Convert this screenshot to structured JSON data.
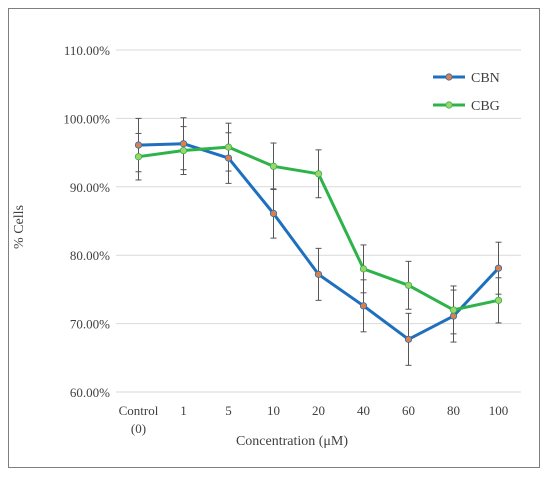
{
  "chart_data": {
    "type": "line",
    "title": "",
    "xlabel": "Concentration (μM)",
    "ylabel": "% Cells",
    "categories": [
      [
        "Control",
        "(0)"
      ],
      [
        "1"
      ],
      [
        "5"
      ],
      [
        "10"
      ],
      [
        "20"
      ],
      [
        "40"
      ],
      [
        "60"
      ],
      [
        "80"
      ],
      [
        "100"
      ]
    ],
    "ylim": [
      60,
      110
    ],
    "ytick_step": 10,
    "ytick_labels": [
      "60.00%",
      "70.00%",
      "80.00%",
      "90.00%",
      "100.00%",
      "110.00%"
    ],
    "grid": "horizontal",
    "legend": "top-right",
    "series": [
      {
        "name": "CBN",
        "color": "#1f6fbf",
        "marker_color": "#e07f45",
        "values": [
          96.1,
          96.3,
          94.2,
          86.1,
          77.2,
          72.6,
          67.7,
          71.1,
          78.1
        ],
        "errors": [
          3.9,
          3.8,
          3.7,
          3.6,
          3.8,
          3.8,
          3.8,
          3.8,
          3.8
        ]
      },
      {
        "name": "CBG",
        "color": "#2db34a",
        "marker_color": "#9fd46a",
        "values": [
          94.4,
          95.3,
          95.8,
          93.0,
          91.9,
          78.0,
          75.6,
          72.0,
          73.4
        ],
        "errors": [
          3.4,
          3.5,
          3.5,
          3.4,
          3.5,
          3.5,
          3.5,
          3.5,
          3.3
        ]
      }
    ]
  }
}
